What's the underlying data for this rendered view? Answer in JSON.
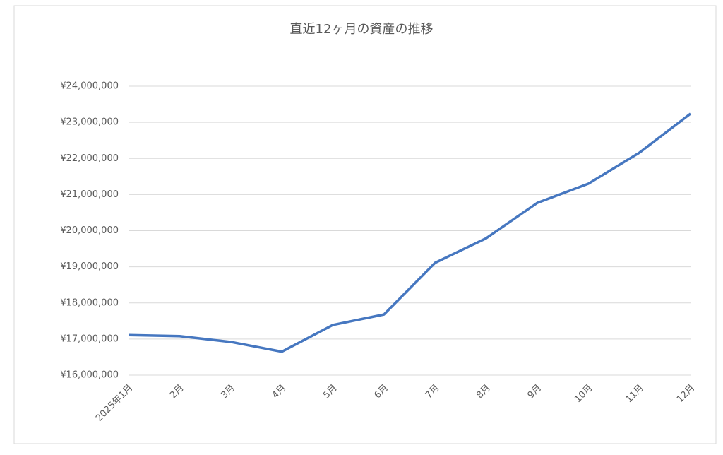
{
  "chart_data": {
    "type": "line",
    "title": "直近12ヶ月の資産の推移",
    "categories": [
      "2025年1月",
      "2月",
      "3月",
      "4月",
      "5月",
      "6月",
      "7月",
      "8月",
      "9月",
      "10月",
      "11月",
      "12月"
    ],
    "values": [
      17110000,
      17080000,
      16920000,
      16650000,
      17390000,
      17680000,
      19110000,
      19790000,
      20770000,
      21300000,
      22160000,
      23240000
    ],
    "color": "#4677c0",
    "ylim": [
      16000000,
      24000000
    ],
    "yticks": [
      {
        "value": 16000000,
        "label": "¥16,000,000"
      },
      {
        "value": 17000000,
        "label": "¥17,000,000"
      },
      {
        "value": 18000000,
        "label": "¥18,000,000"
      },
      {
        "value": 19000000,
        "label": "¥19,000,000"
      },
      {
        "value": 20000000,
        "label": "¥20,000,000"
      },
      {
        "value": 21000000,
        "label": "¥21,000,000"
      },
      {
        "value": 22000000,
        "label": "¥22,000,000"
      },
      {
        "value": 23000000,
        "label": "¥23,000,000"
      },
      {
        "value": 24000000,
        "label": "¥24,000,000"
      }
    ],
    "grid": true
  }
}
